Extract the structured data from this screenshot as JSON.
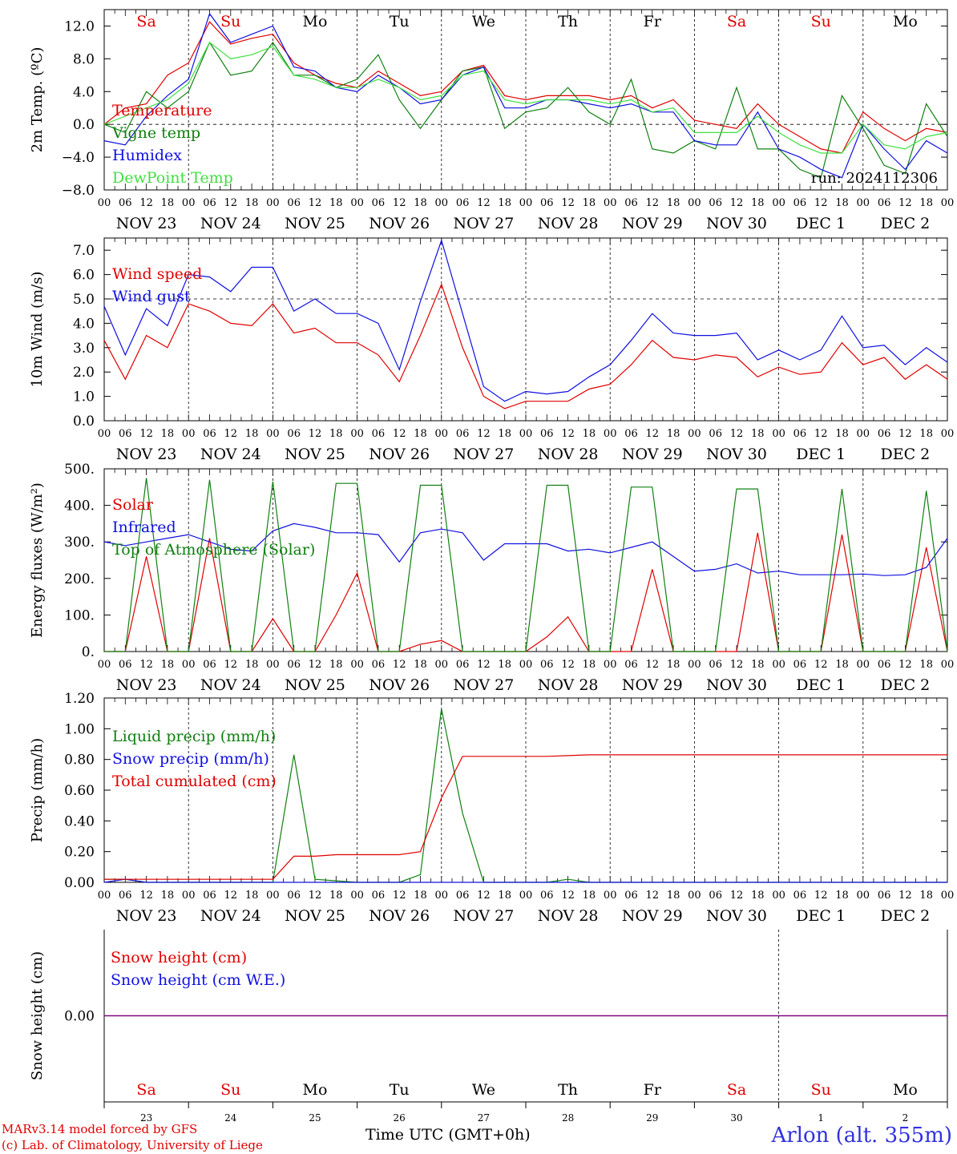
{
  "run": "run: 2024112306",
  "x_title": "Time UTC (GMT+0h)",
  "credits": [
    "MARv3.14 model forced by GFS",
    "(c) Lab. of Climatology, University of Liege"
  ],
  "station": "Arlon (alt. 355m)",
  "colors": {
    "red": "#e00000",
    "green": "#108010",
    "blue": "#1010e0",
    "lime": "#40e040",
    "purple": "#800080",
    "weekend": "#e00000"
  },
  "days": [
    {
      "abbr": "Sa",
      "date": "NOV 23",
      "num": "23",
      "weekend": true
    },
    {
      "abbr": "Su",
      "date": "NOV 24",
      "num": "24",
      "weekend": true
    },
    {
      "abbr": "Mo",
      "date": "NOV 25",
      "num": "25",
      "weekend": false
    },
    {
      "abbr": "Tu",
      "date": "NOV 26",
      "num": "26",
      "weekend": false
    },
    {
      "abbr": "We",
      "date": "NOV 27",
      "num": "27",
      "weekend": false
    },
    {
      "abbr": "Th",
      "date": "NOV 28",
      "num": "28",
      "weekend": false
    },
    {
      "abbr": "Fr",
      "date": "NOV 29",
      "num": "29",
      "weekend": false
    },
    {
      "abbr": "Sa",
      "date": "NOV 30",
      "num": "30",
      "weekend": true
    },
    {
      "abbr": "Su",
      "date": "DEC  1",
      "num": "1",
      "weekend": true
    },
    {
      "abbr": "Mo",
      "date": "DEC  2",
      "num": "2",
      "weekend": false
    }
  ],
  "hour_ticks": [
    "00",
    "06",
    "12",
    "18"
  ],
  "end_tick": "00",
  "chart_data": [
    {
      "type": "line",
      "ylabel": "2m Temp. (ºC)",
      "ylim": [
        -8,
        14
      ],
      "yticks": [
        "12.0",
        "8.0",
        "4.0",
        "0.0",
        "−4.0",
        "−8.0"
      ],
      "ytick_values": [
        12,
        8,
        4,
        0,
        -4,
        -8
      ],
      "refline": 0,
      "x_hours": [
        0,
        6,
        12,
        18,
        24,
        30,
        36,
        42,
        48,
        54,
        60,
        66,
        72,
        78,
        84,
        90,
        96,
        102,
        108,
        114,
        120,
        126,
        132,
        138,
        144,
        150,
        156,
        162,
        168,
        174,
        180,
        186,
        192,
        198,
        204,
        210,
        216,
        222,
        228,
        234,
        240
      ],
      "series": [
        {
          "name": "Temperature",
          "color": "red",
          "values": [
            0,
            2,
            2.5,
            6,
            7.5,
            12.5,
            9.8,
            10.5,
            11,
            7.5,
            6,
            5,
            4.5,
            6.5,
            5,
            3.5,
            4,
            6.5,
            7.2,
            3.5,
            3,
            3.5,
            3.5,
            3.5,
            3,
            3.5,
            2,
            3,
            0.5,
            0,
            -0.5,
            2.5,
            0,
            -1.5,
            -3,
            -3.5,
            1.5,
            -0.5,
            -2,
            -0.5,
            -1
          ]
        },
        {
          "name": "Vigne temp",
          "color": "green",
          "values": [
            0,
            -1,
            4,
            2,
            4,
            10,
            6,
            6.5,
            10,
            6,
            6,
            4.5,
            5.5,
            8.5,
            3,
            -0.5,
            3,
            6.5,
            7,
            -0.5,
            1.5,
            2,
            4.5,
            1.5,
            0,
            5.5,
            -3,
            -3.5,
            -2,
            -3,
            4.5,
            -3,
            -3,
            -5.5,
            -6.5,
            3.5,
            -0.5,
            -5,
            -6,
            2.5,
            -1.5
          ]
        },
        {
          "name": "Humidex",
          "color": "blue",
          "values": [
            -2,
            -2.5,
            1,
            3.5,
            5.5,
            13.5,
            10,
            11,
            12,
            7,
            6.5,
            4.5,
            4,
            6,
            4.5,
            2.5,
            3,
            6,
            7,
            2,
            2,
            3,
            3,
            2.5,
            2,
            2.5,
            1.5,
            1.5,
            -2,
            -2.5,
            -2.5,
            1.5,
            -3,
            -4,
            -5.5,
            -6.5,
            0,
            -3,
            -5.5,
            -2,
            -3.5
          ]
        },
        {
          "name": "DewPoint Temp",
          "color": "lime",
          "values": [
            0,
            1,
            2,
            3,
            5,
            10,
            8,
            8.5,
            9.5,
            6,
            5.5,
            4.5,
            4.5,
            5.5,
            4.5,
            3,
            3.5,
            6,
            6.5,
            3,
            2.5,
            3,
            3,
            3,
            2.5,
            3,
            1.5,
            2,
            -1,
            -1,
            -1,
            1,
            -1,
            -2.5,
            -3.5,
            -3.5,
            0,
            -2.5,
            -3,
            -1.5,
            -1
          ]
        }
      ]
    },
    {
      "type": "line",
      "ylabel": "10m Wind (m/s)",
      "ylim": [
        0,
        7.5
      ],
      "yticks": [
        "7.0",
        "6.0",
        "5.0",
        "4.0",
        "3.0",
        "2.0",
        "1.0",
        "0.0"
      ],
      "ytick_values": [
        7,
        6,
        5,
        4,
        3,
        2,
        1,
        0
      ],
      "refline": 5,
      "x_hours": [
        0,
        6,
        12,
        18,
        24,
        30,
        36,
        42,
        48,
        54,
        60,
        66,
        72,
        78,
        84,
        90,
        96,
        102,
        108,
        114,
        120,
        126,
        132,
        138,
        144,
        150,
        156,
        162,
        168,
        174,
        180,
        186,
        192,
        198,
        204,
        210,
        216,
        222,
        228,
        234,
        240
      ],
      "series": [
        {
          "name": "Wind speed",
          "color": "red",
          "values": [
            3.3,
            1.7,
            3.5,
            3.0,
            4.8,
            4.5,
            4.0,
            3.9,
            4.8,
            3.6,
            3.8,
            3.2,
            3.2,
            2.7,
            1.6,
            3.5,
            5.6,
            3.0,
            1.0,
            0.5,
            0.8,
            0.8,
            0.8,
            1.3,
            1.5,
            2.3,
            3.3,
            2.6,
            2.5,
            2.7,
            2.6,
            1.8,
            2.2,
            1.9,
            2.0,
            3.2,
            2.3,
            2.6,
            1.7,
            2.3,
            1.7
          ]
        },
        {
          "name": "Wind gust",
          "color": "blue",
          "values": [
            4.7,
            2.7,
            4.6,
            3.9,
            6.0,
            5.9,
            5.3,
            6.3,
            6.3,
            4.5,
            5.0,
            4.4,
            4.4,
            4.0,
            2.1,
            4.9,
            7.4,
            4.4,
            1.4,
            0.8,
            1.2,
            1.1,
            1.2,
            1.8,
            2.3,
            3.3,
            4.4,
            3.6,
            3.5,
            3.5,
            3.6,
            2.5,
            2.9,
            2.5,
            2.9,
            4.3,
            3.0,
            3.1,
            2.3,
            3.0,
            2.4
          ]
        }
      ]
    },
    {
      "type": "line",
      "ylabel": "Energy fluxes (W/m²)",
      "ylim": [
        0,
        500
      ],
      "yticks": [
        "500.",
        "400.",
        "300.",
        "200.",
        "100.",
        "0."
      ],
      "ytick_values": [
        500,
        400,
        300,
        200,
        100,
        0
      ],
      "refline": null,
      "x_hours": [
        0,
        6,
        12,
        18,
        24,
        30,
        36,
        42,
        48,
        54,
        60,
        66,
        72,
        78,
        84,
        90,
        96,
        102,
        108,
        114,
        120,
        126,
        132,
        138,
        144,
        150,
        156,
        162,
        168,
        174,
        180,
        186,
        192,
        198,
        204,
        210,
        216,
        222,
        228,
        234,
        240
      ],
      "series": [
        {
          "name": "Solar",
          "color": "red",
          "values": [
            0,
            0,
            260,
            0,
            0,
            310,
            0,
            0,
            90,
            0,
            0,
            100,
            215,
            0,
            0,
            20,
            30,
            0,
            0,
            0,
            0,
            40,
            95,
            0,
            0,
            0,
            225,
            0,
            0,
            0,
            0,
            325,
            0,
            0,
            0,
            320,
            0,
            0,
            0,
            285,
            0
          ]
        },
        {
          "name": "Infrared",
          "color": "blue",
          "values": [
            300,
            290,
            300,
            310,
            320,
            300,
            280,
            275,
            330,
            350,
            340,
            325,
            325,
            320,
            245,
            325,
            335,
            325,
            250,
            295,
            295,
            295,
            275,
            280,
            270,
            285,
            300,
            260,
            220,
            225,
            240,
            215,
            220,
            210,
            210,
            210,
            212,
            208,
            210,
            230,
            310
          ]
        },
        {
          "name": "Top of Atmosphere (Solar)",
          "color": "green",
          "values": [
            0,
            0,
            475,
            0,
            0,
            470,
            0,
            0,
            465,
            0,
            0,
            460,
            460,
            0,
            0,
            455,
            455,
            0,
            0,
            0,
            0,
            455,
            455,
            0,
            0,
            450,
            450,
            0,
            0,
            0,
            445,
            445,
            0,
            0,
            0,
            445,
            0,
            0,
            0,
            440,
            0
          ]
        }
      ]
    },
    {
      "type": "line",
      "ylabel": "Precip (mm/h)",
      "ylim": [
        0,
        1.2
      ],
      "yticks": [
        "1.20",
        "1.00",
        "0.80",
        "0.60",
        "0.40",
        "0.20",
        "0.00"
      ],
      "ytick_values": [
        1.2,
        1.0,
        0.8,
        0.6,
        0.4,
        0.2,
        0.0
      ],
      "refline": null,
      "x_hours": [
        0,
        6,
        12,
        18,
        24,
        30,
        36,
        42,
        48,
        54,
        60,
        66,
        72,
        78,
        84,
        90,
        96,
        102,
        108,
        114,
        120,
        126,
        132,
        138,
        144,
        150,
        156,
        162,
        168,
        174,
        180,
        186,
        192,
        198,
        204,
        210,
        216,
        222,
        228,
        234,
        240
      ],
      "series": [
        {
          "name": "Liquid precip (mm/h)",
          "color": "green",
          "values": [
            0.02,
            0.02,
            0,
            0,
            0,
            0,
            0,
            0,
            0,
            0.83,
            0.02,
            0.01,
            0,
            0,
            0,
            0.05,
            1.13,
            0.45,
            0,
            0,
            0,
            0,
            0.02,
            0,
            0,
            0,
            0,
            0,
            0,
            0,
            0,
            0,
            0,
            0,
            0,
            0,
            0,
            0,
            0,
            0,
            0
          ]
        },
        {
          "name": "Snow precip (mm/h)",
          "color": "blue",
          "values": [
            0,
            0.02,
            0,
            0,
            0,
            0,
            0,
            0,
            0,
            0,
            0,
            0,
            0,
            0,
            0,
            0,
            0,
            0,
            0,
            0,
            0,
            0,
            0,
            0,
            0,
            0,
            0,
            0,
            0,
            0,
            0,
            0,
            0,
            0,
            0,
            0,
            0,
            0,
            0,
            0,
            0
          ]
        },
        {
          "name": "Total cumulated (cm)",
          "color": "red",
          "values": [
            0.02,
            0.02,
            0.02,
            0.02,
            0.02,
            0.02,
            0.02,
            0.02,
            0.02,
            0.17,
            0.17,
            0.18,
            0.18,
            0.18,
            0.18,
            0.2,
            0.55,
            0.82,
            0.82,
            0.82,
            0.82,
            0.82,
            0.825,
            0.83,
            0.83,
            0.83,
            0.83,
            0.83,
            0.83,
            0.83,
            0.83,
            0.83,
            0.83,
            0.83,
            0.83,
            0.83,
            0.83,
            0.83,
            0.83,
            0.83,
            0.83
          ]
        }
      ]
    },
    {
      "type": "line",
      "ylabel": "Snow height (cm)",
      "ylim": [
        -1,
        1
      ],
      "yticks": [
        "0.00"
      ],
      "ytick_values": [
        0
      ],
      "refline": null,
      "x_hours": [
        0,
        240
      ],
      "series": [
        {
          "name": "Snow height (cm)",
          "color": "red",
          "values": [
            0,
            0
          ]
        },
        {
          "name": "Snow height (cm W.E.)",
          "color": "blue",
          "values": [
            0,
            0
          ]
        }
      ]
    }
  ]
}
